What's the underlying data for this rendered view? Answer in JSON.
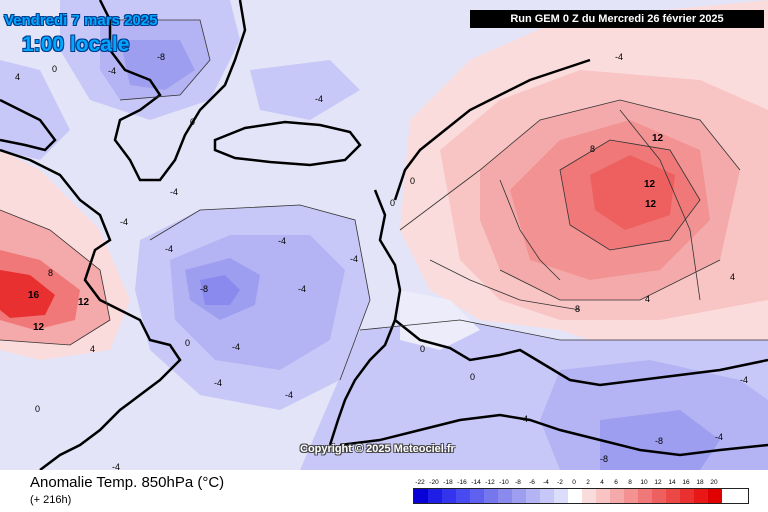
{
  "header": {
    "valid_date": "Vendredi 7 mars 2025",
    "valid_time": "1:00 locale",
    "run_info": "Run GEM 0 Z du Mercredi 26 février 2025"
  },
  "map": {
    "copyright": "Copyright © 2025 Meteociel.fr",
    "contour_labels": [
      "0",
      "-4",
      "-8",
      "4",
      "8",
      "12",
      "16"
    ]
  },
  "footer": {
    "parameter": "Anomalie Temp. 850hPa (°C)",
    "lead_time": "(+ 216h)"
  },
  "legend": {
    "labels": [
      "-22",
      "-20",
      "-18",
      "-16",
      "-14",
      "-12",
      "-10",
      "-8",
      "-6",
      "-4",
      "-2",
      "0",
      "2",
      "4",
      "6",
      "8",
      "10",
      "12",
      "14",
      "16",
      "18",
      "20"
    ],
    "colors": [
      "#0a00d8",
      "#1e1ee6",
      "#3434ee",
      "#4a4af2",
      "#6060f0",
      "#7676ee",
      "#8a8aee",
      "#9e9ef0",
      "#b4b4f4",
      "#c8c8f8",
      "#dcdcfb",
      "#ffffff",
      "#fbdcdc",
      "#f8c4c4",
      "#f4aaaa",
      "#f29292",
      "#f07878",
      "#ee6060",
      "#ec4848",
      "#ea3030",
      "#e81818",
      "#e00000"
    ]
  }
}
